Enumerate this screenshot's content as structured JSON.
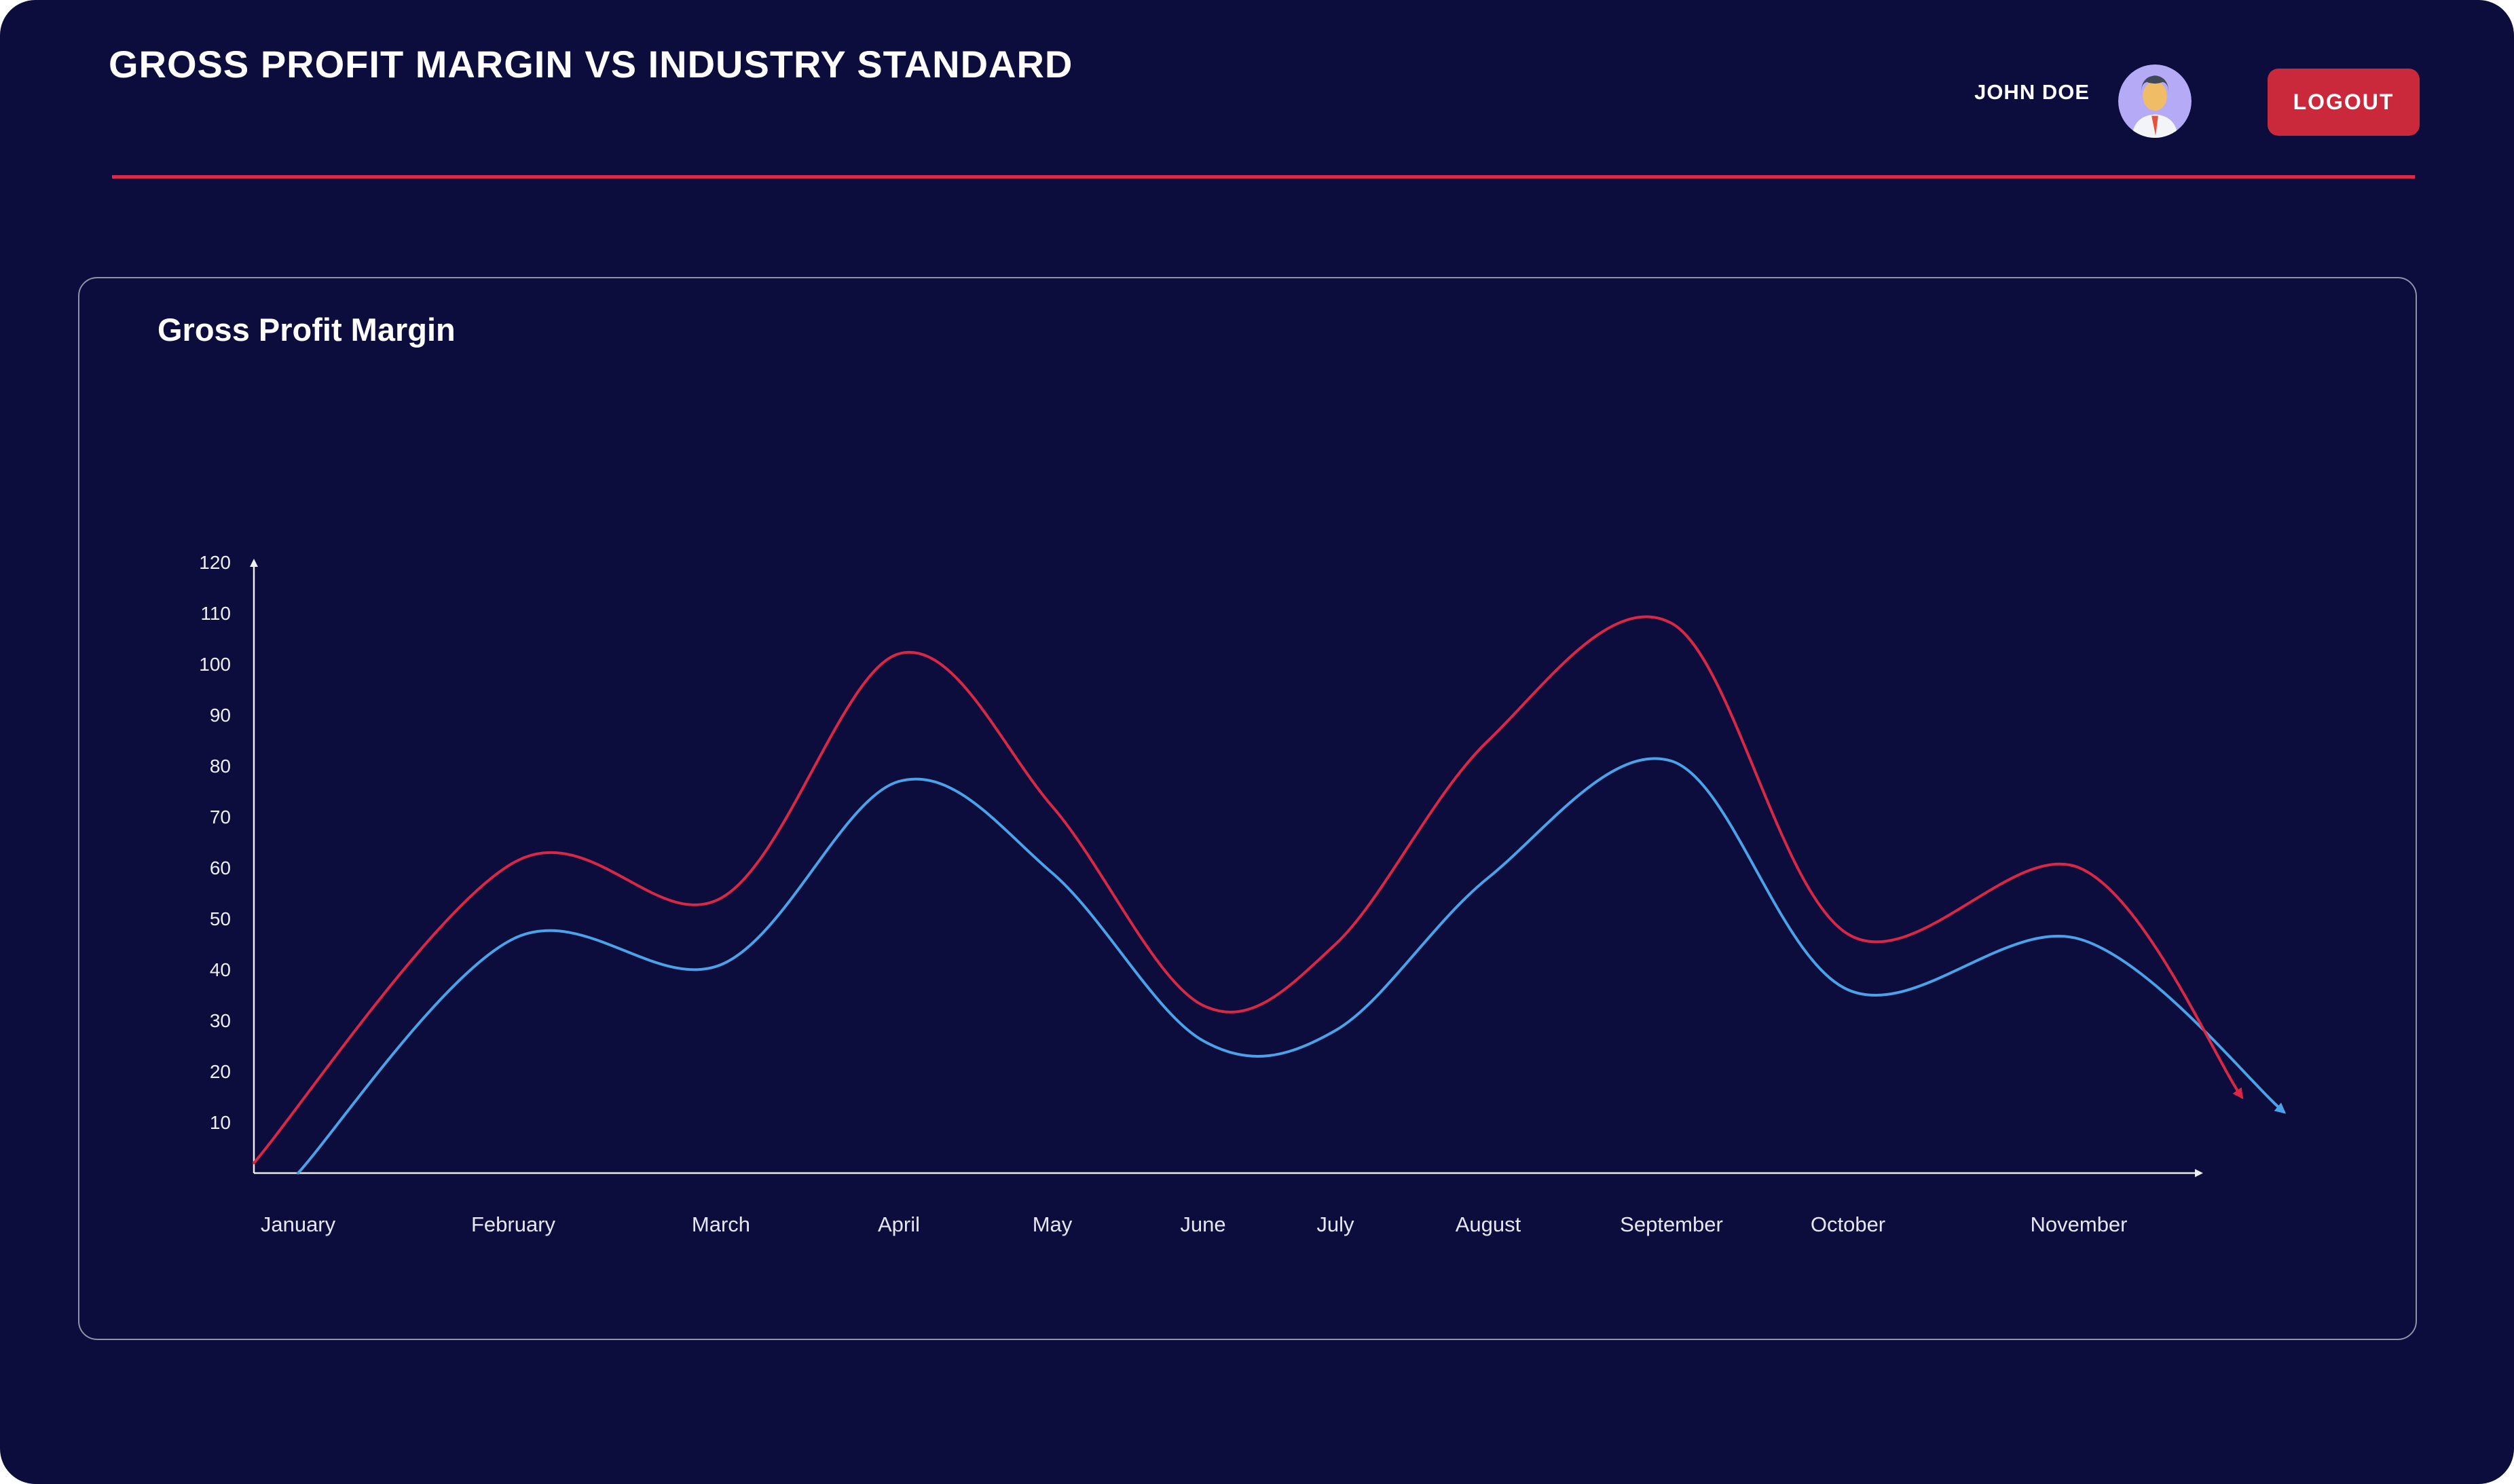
{
  "header": {
    "title": "GROSS PROFIT MARGIN VS INDUSTRY STANDARD",
    "user_name": "JOHN DOE",
    "logout_label": "LOGOUT"
  },
  "card": {
    "title": "Gross Profit Margin"
  },
  "chart_data": {
    "type": "line",
    "title": "Gross Profit Margin",
    "categories": [
      "January",
      "February",
      "March",
      "April",
      "May",
      "June",
      "July",
      "August",
      "September",
      "October",
      "November"
    ],
    "trailing_unlabeled_point": true,
    "series": [
      {
        "name": "Gross Profit Margin",
        "color": "#4aa3e8",
        "values": [
          0,
          46,
          41,
          77,
          59,
          26,
          28,
          58,
          81,
          36,
          46,
          12
        ]
      },
      {
        "name": "Industry Standard",
        "color": "#d92845",
        "values": [
          2,
          61,
          54,
          102,
          72,
          33,
          45,
          85,
          108,
          47,
          60,
          15
        ]
      }
    ],
    "ylim": [
      0,
      120
    ],
    "yticks": [
      10,
      20,
      30,
      40,
      50,
      60,
      70,
      80,
      90,
      100,
      110,
      120
    ],
    "grid": false,
    "legend": false,
    "line_ends_have_arrowheads": true
  },
  "colors": {
    "app_background": "#0d0d3d",
    "page_background": "#ffffff",
    "divider_red": "#da2c49",
    "logout_red": "#c9293a",
    "line_red": "#d92845",
    "line_blue": "#4aa3e8",
    "axis_color": "#eeeef6",
    "avatar_background": "#b5aaf5"
  }
}
